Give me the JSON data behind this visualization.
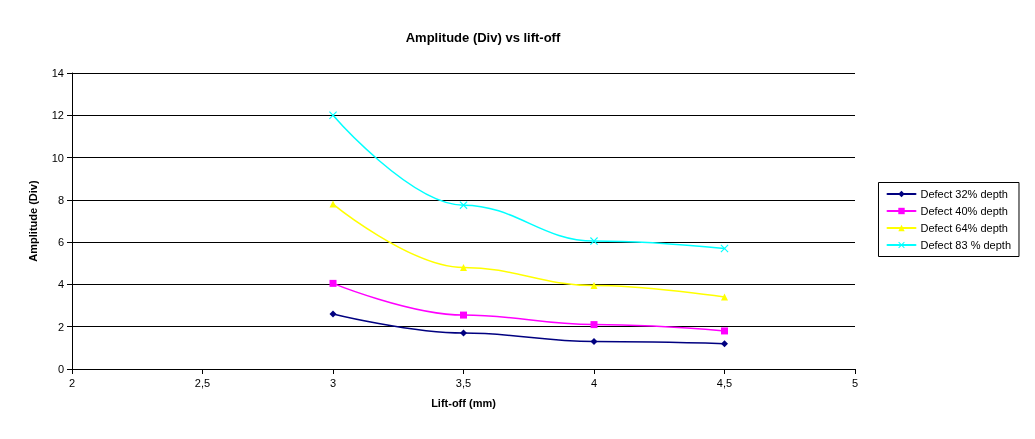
{
  "chart_data": {
    "type": "line",
    "title": "Amplitude (Div) vs lift-off",
    "xlabel": "Lift-off (mm)",
    "ylabel": "Amplitude (Div)",
    "xlim": [
      2,
      5
    ],
    "xticks": [
      2,
      {
        "value": 2.5,
        "label": "2,5"
      },
      3,
      {
        "value": 3.5,
        "label": "3,5"
      },
      4,
      {
        "value": 4.5,
        "label": "4,5"
      },
      5
    ],
    "ylim": [
      0,
      14
    ],
    "yticks": [
      0,
      2,
      4,
      6,
      8,
      10,
      12,
      14
    ],
    "grid": "y",
    "legend": "right",
    "x": [
      3,
      3.5,
      4,
      4.5
    ],
    "series": [
      {
        "name": "Defect 32% depth",
        "color": "#000080",
        "marker": "diamond",
        "values": [
          2.6,
          1.7,
          1.3,
          1.2
        ]
      },
      {
        "name": "Defect 40% depth",
        "color": "#ff00ff",
        "marker": "square",
        "values": [
          4.05,
          2.55,
          2.1,
          1.8
        ]
      },
      {
        "name": "Defect 64% depth",
        "color": "#ffff00",
        "marker": "triangle",
        "values": [
          7.8,
          4.8,
          3.95,
          3.4
        ]
      },
      {
        "name": "Defect 83 % depth",
        "color": "#00ffff",
        "marker": "cross",
        "values": [
          12,
          7.75,
          6.05,
          5.7
        ]
      }
    ]
  }
}
